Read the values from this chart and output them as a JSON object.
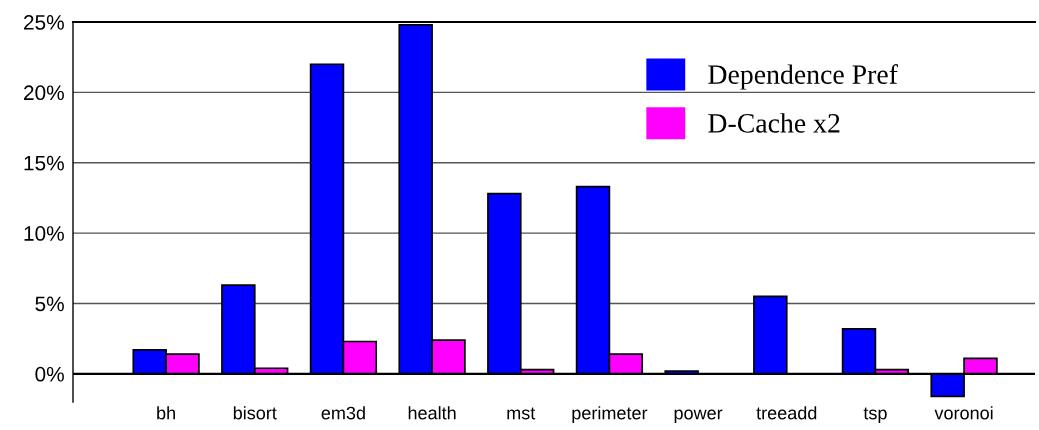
{
  "chart_data": {
    "type": "bar",
    "categories": [
      "bh",
      "bisort",
      "em3d",
      "health",
      "mst",
      "perimeter",
      "power",
      "treeadd",
      "tsp",
      "voronoi"
    ],
    "series": [
      {
        "name": "Dependence Pref",
        "color": "#0000ff",
        "values": [
          1.7,
          6.3,
          22.0,
          24.8,
          12.8,
          13.3,
          0.2,
          5.5,
          3.2,
          -1.6
        ]
      },
      {
        "name": "D-Cache x2",
        "color": "#ff00ff",
        "values": [
          1.4,
          0.4,
          2.3,
          2.4,
          0.3,
          1.4,
          null,
          null,
          0.3,
          1.1
        ]
      }
    ],
    "ylim": [
      -2,
      25
    ],
    "yticks": [
      {
        "value": 0,
        "label": "0%"
      },
      {
        "value": 5,
        "label": "5%"
      },
      {
        "value": 10,
        "label": "10%"
      },
      {
        "value": 15,
        "label": "15%"
      },
      {
        "value": 20,
        "label": "20%"
      },
      {
        "value": 25,
        "label": "25%"
      }
    ],
    "grid": "y",
    "legend": "top right"
  }
}
